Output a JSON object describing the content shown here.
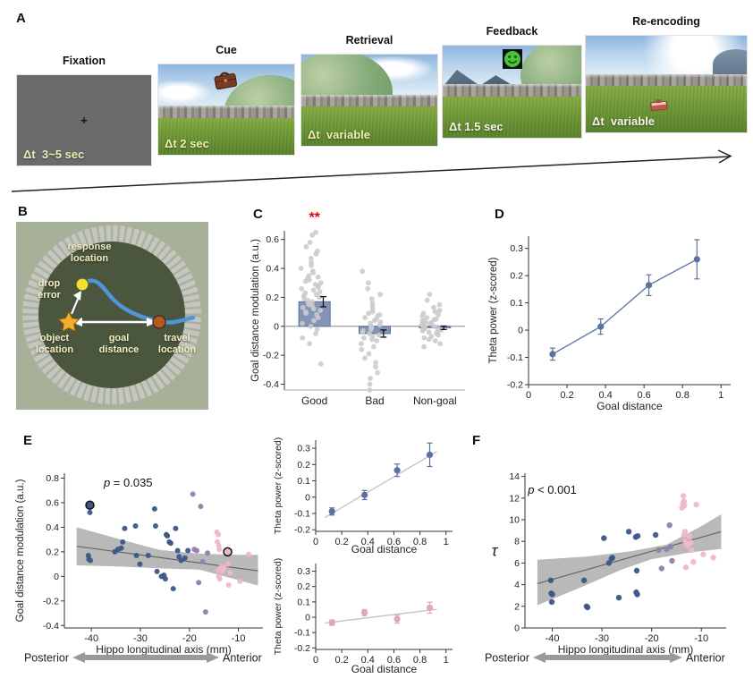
{
  "figure": {
    "panel_labels": {
      "A": "A",
      "B": "B",
      "C": "C",
      "D": "D",
      "E": "E",
      "F": "F"
    }
  },
  "panel_a": {
    "fixation_cross": "+",
    "stages": [
      {
        "title": "Fixation",
        "duration": "Δt  3~5 sec"
      },
      {
        "title": "Cue",
        "duration": "Δt 2 sec"
      },
      {
        "title": "Retrieval",
        "duration": "Δt  variable"
      },
      {
        "title": "Feedback",
        "duration": "Δt 1.5 sec"
      },
      {
        "title": "Re-encoding",
        "duration": "Δt  variable"
      }
    ]
  },
  "panel_b": {
    "labels": {
      "response": "response\nlocation",
      "drop_error": "drop\nerror",
      "object": "object\nlocation",
      "goal_distance": "goal\ndistance",
      "travel": "travel\nlocation"
    }
  },
  "colors": {
    "bar_fill": "#8394b8",
    "bar_stroke": "#5e6f9d",
    "swarm_dot": "#cbcbcb",
    "series_blue": "#5b72a0",
    "scatter_navy": "#3c5688",
    "scatter_purple": "#8f7fae",
    "scatter_pink": "#efb7c9",
    "pink_series": "#e2a5bc",
    "confidence_band": "#b9b9b9",
    "regression_line": "#666666",
    "significance_red": "#e8000d",
    "path_blue": "#4e95d9"
  },
  "chart_data": [
    {
      "id": "C",
      "type": "bar",
      "ylabel": "Goal distance modulation (a.u.)",
      "ylabel_x": 11,
      "categories": [
        "Good",
        "Bad",
        "Non-goal"
      ],
      "values": [
        0.17,
        -0.05,
        -0.01
      ],
      "errors": [
        0.035,
        0.025,
        0.012
      ],
      "ylim": [
        -0.44,
        0.66
      ],
      "yticks": [
        -0.4,
        -0.2,
        0,
        0.2,
        0.4,
        0.6
      ],
      "significance": {
        "category": "Good",
        "text": "**",
        "color": "#e8000d"
      },
      "bar_fill": "#8394b8",
      "bar_stroke": "#5e6f9d",
      "dot_color": "#cbcbcb",
      "swarm": {
        "Good": [
          0.65,
          0.63,
          0.58,
          0.55,
          0.52,
          0.5,
          0.47,
          0.44,
          0.42,
          0.4,
          0.38,
          0.37,
          0.35,
          0.34,
          0.33,
          0.32,
          0.31,
          0.3,
          0.29,
          0.28,
          0.27,
          0.26,
          0.25,
          0.24,
          0.23,
          0.22,
          0.21,
          0.2,
          0.19,
          0.18,
          0.17,
          0.16,
          0.15,
          0.14,
          0.13,
          0.12,
          0.11,
          0.1,
          0.09,
          0.08,
          0.06,
          0.04,
          0.02,
          0,
          -0.02,
          -0.05,
          -0.08,
          -0.12,
          -0.26
        ],
        "Bad": [
          0.38,
          0.3,
          0.26,
          0.22,
          0.19,
          0.16,
          0.14,
          0.12,
          0.1,
          0.09,
          0.08,
          0.07,
          0.06,
          0.05,
          0.04,
          0.03,
          0.02,
          0.01,
          0,
          -0.01,
          -0.02,
          -0.03,
          -0.04,
          -0.05,
          -0.06,
          -0.07,
          -0.08,
          -0.09,
          -0.1,
          -0.12,
          -0.14,
          -0.16,
          -0.19,
          -0.22,
          -0.25,
          -0.28,
          -0.32,
          -0.36,
          -0.4,
          -0.44
        ],
        "Non-goal": [
          0.22,
          0.18,
          0.15,
          0.13,
          0.11,
          0.1,
          0.09,
          0.08,
          0.07,
          0.06,
          0.05,
          0.045,
          0.04,
          0.035,
          0.03,
          0.025,
          0.02,
          0.015,
          0.01,
          0.005,
          0,
          -0.005,
          -0.01,
          -0.015,
          -0.02,
          -0.025,
          -0.03,
          -0.035,
          -0.04,
          -0.05,
          -0.06,
          -0.07,
          -0.08,
          -0.09,
          -0.1,
          -0.12,
          -0.14
        ]
      },
      "m": {
        "l": 40,
        "t": 30,
        "r": 8,
        "b": 38
      }
    },
    {
      "id": "D",
      "type": "series",
      "xlabel": "Goal distance",
      "ylabel": "Theta power (z-scored)",
      "ylabel_x": 10,
      "x": [
        0.125,
        0.375,
        0.625,
        0.875
      ],
      "y": [
        -0.088,
        0.013,
        0.165,
        0.26
      ],
      "err": [
        0.022,
        0.028,
        0.038,
        0.072
      ],
      "connect": true,
      "color": "#5b72a0",
      "xlim": [
        0,
        1.05
      ],
      "ylim": [
        -0.2,
        0.345
      ],
      "xticks": [
        0,
        0.2,
        0.4,
        0.6,
        0.8,
        1
      ],
      "yticks": [
        -0.2,
        -0.1,
        0,
        0.1,
        0.2,
        0.3
      ],
      "m": {
        "l": 46,
        "t": 36,
        "r": 25,
        "b": 40
      }
    },
    {
      "id": "E",
      "type": "scatter",
      "xlabel": "Hippo longitudinal axis (mm)",
      "ylabel": "Goal distance modulation (a.u.)",
      "ylabel_x": 14,
      "xlim": [
        -45.5,
        -5
      ],
      "ylim": [
        -0.42,
        0.84
      ],
      "xticks": [
        -40,
        -30,
        -20,
        -10
      ],
      "yticks": [
        -0.4,
        -0.2,
        0,
        0.2,
        0.4,
        0.6,
        0.8
      ],
      "p_label": {
        "sym": "p",
        "rest": " = 0.035",
        "x": -32.5,
        "y": 0.73
      },
      "band_color": "#b9b9b9",
      "band": [
        [
          -43,
          0.4
        ],
        [
          -34,
          0.3
        ],
        [
          -26,
          0.215
        ],
        [
          -18,
          0.185
        ],
        [
          -10,
          0.175
        ],
        [
          -6,
          0.175
        ],
        [
          -6,
          -0.075
        ],
        [
          -10,
          -0.03
        ],
        [
          -18,
          0.055
        ],
        [
          -26,
          0.065
        ],
        [
          -34,
          0.08
        ],
        [
          -43,
          0.09
        ]
      ],
      "regression": [
        [
          -43,
          0.245
        ],
        [
          -6,
          0.045
        ]
      ],
      "pt_r": 3,
      "groups": [
        {
          "name": "posterior",
          "color": "#3c5688",
          "points": [
            [
              -40.3,
              0.52
            ],
            [
              -40.6,
              0.17
            ],
            [
              -40.5,
              0.14
            ],
            [
              -40.2,
              0.13
            ],
            [
              -35.2,
              0.2
            ],
            [
              -34.6,
              0.22
            ],
            [
              -33.9,
              0.23
            ],
            [
              -33.6,
              0.28
            ],
            [
              -33.2,
              0.39
            ],
            [
              -31,
              0.41
            ],
            [
              -30.8,
              0.17
            ],
            [
              -30.1,
              0.1
            ],
            [
              -28.4,
              0.17
            ],
            [
              -27.1,
              0.55
            ],
            [
              -26.9,
              0.41
            ],
            [
              -26.6,
              0.04
            ],
            [
              -25.7,
              0
            ],
            [
              -25.2,
              0.01
            ],
            [
              -24.9,
              -0.02
            ],
            [
              -24.7,
              0.34
            ],
            [
              -24.5,
              0.33
            ],
            [
              -24.1,
              0.28
            ],
            [
              -23.8,
              0.27
            ],
            [
              -23.3,
              -0.1
            ],
            [
              -22.8,
              0.39
            ],
            [
              -22.4,
              0.21
            ],
            [
              -22.1,
              0.16
            ],
            [
              -21.7,
              0.13
            ],
            [
              -20.9,
              0.15
            ],
            [
              -20.3,
              0.21
            ]
          ]
        },
        {
          "name": "middle",
          "color": "#8f7fae",
          "points": [
            [
              -19.3,
              0.67
            ],
            [
              -19,
              0.22
            ],
            [
              -18.5,
              0.21
            ],
            [
              -18.1,
              -0.05
            ],
            [
              -17.7,
              0.57
            ],
            [
              -17.3,
              0.12
            ],
            [
              -16.7,
              -0.29
            ],
            [
              -16.3,
              0.19
            ]
          ]
        },
        {
          "name": "anterior",
          "color": "#efb7c9",
          "points": [
            [
              -14.4,
              0.36
            ],
            [
              -14.1,
              0.34
            ],
            [
              -14.3,
              0.28
            ],
            [
              -14,
              0.25
            ],
            [
              -13.9,
              0.22
            ],
            [
              -14.1,
              0.05
            ],
            [
              -14,
              0
            ],
            [
              -13.8,
              -0.02
            ],
            [
              -13.5,
              0.08
            ],
            [
              -13.3,
              0.04
            ],
            [
              -12.9,
              0.07
            ],
            [
              -12.1,
              0.1
            ],
            [
              -12,
              -0.07
            ],
            [
              -11.7,
              0.03
            ],
            [
              -9.7,
              -0.04
            ],
            [
              -7.9,
              0.18
            ]
          ]
        }
      ],
      "highlight": [
        {
          "x": -40.3,
          "y": 0.58,
          "color": "#3c5688"
        },
        {
          "x": -12.2,
          "y": 0.2,
          "color": "#efb7c9"
        }
      ],
      "axis_arrow": {
        "left": "Posterior",
        "right": "Anterior"
      },
      "m": {
        "l": 60,
        "t": 51,
        "r": 18,
        "b": 64
      }
    },
    {
      "id": "E2a",
      "type": "series",
      "xlabel": "Goal distance",
      "ylabel": "Theta power (z-scored)",
      "ylabel_x": 11,
      "ylabel_fs": 10.5,
      "xlabel_dy": 24,
      "x": [
        0.125,
        0.375,
        0.625,
        0.875
      ],
      "y": [
        -0.088,
        0.013,
        0.165,
        0.26
      ],
      "err": [
        0.022,
        0.028,
        0.038,
        0.072
      ],
      "fit": [
        [
          0.07,
          -0.125
        ],
        [
          0.93,
          0.28
        ]
      ],
      "connect": false,
      "color": "#5b72a0",
      "xlim": [
        0,
        1.05
      ],
      "ylim": [
        -0.21,
        0.35
      ],
      "xticks": [
        0,
        0.2,
        0.4,
        0.6,
        0.8,
        1
      ],
      "yticks": [
        -0.2,
        -0.1,
        0,
        0.1,
        0.2,
        0.3
      ],
      "m": {
        "l": 50,
        "t": 22,
        "r": 14,
        "b": 28
      }
    },
    {
      "id": "E2b",
      "type": "series",
      "xlabel": "Goal distance",
      "ylabel": "Theta power (z-scored)",
      "ylabel_x": 11,
      "ylabel_fs": 10.5,
      "xlabel_dy": 26,
      "x": [
        0.125,
        0.375,
        0.625,
        0.875
      ],
      "y": [
        -0.035,
        0.03,
        -0.012,
        0.062
      ],
      "err": [
        0.018,
        0.02,
        0.026,
        0.036
      ],
      "fit": [
        [
          0.07,
          -0.038
        ],
        [
          0.93,
          0.052
        ]
      ],
      "connect": false,
      "color": "#e2a5bc",
      "xlim": [
        0,
        1.05
      ],
      "ylim": [
        -0.21,
        0.35
      ],
      "xticks": [
        0,
        0.2,
        0.4,
        0.6,
        0.8,
        1
      ],
      "yticks": [
        -0.2,
        -0.1,
        0,
        0.1,
        0.2,
        0.3
      ],
      "m": {
        "l": 50,
        "t": 30,
        "r": 14,
        "b": 38
      }
    },
    {
      "id": "F",
      "type": "scatter",
      "xlabel": "Hippo longitudinal axis (mm)",
      "ylabel": "τ",
      "ylabel_rot": false,
      "xlim": [
        -45.5,
        -5
      ],
      "ylim": [
        0,
        14.3
      ],
      "xticks": [
        -40,
        -30,
        -20,
        -10
      ],
      "yticks": [
        0,
        2,
        4,
        6,
        8,
        10,
        12,
        14
      ],
      "p_label": {
        "sym": "p",
        "rest": " < 0.001",
        "x": -40,
        "y": 12.4
      },
      "band_color": "#b9b9b9",
      "band": [
        [
          -43,
          6.3
        ],
        [
          -33,
          6.6
        ],
        [
          -24,
          7.1
        ],
        [
          -17,
          7.7
        ],
        [
          -10,
          9.4
        ],
        [
          -6,
          10.5
        ],
        [
          -6,
          7.3
        ],
        [
          -12,
          7
        ],
        [
          -20,
          6.35
        ],
        [
          -26,
          5.4
        ],
        [
          -34,
          3.8
        ],
        [
          -43,
          2.1
        ]
      ],
      "regression": [
        [
          -43,
          4.1
        ],
        [
          -6,
          8.9
        ]
      ],
      "pt_r": 3.2,
      "groups": [
        {
          "name": "posterior",
          "color": "#3c5688",
          "points": [
            [
              -40.3,
              4.4
            ],
            [
              -40.2,
              3.2
            ],
            [
              -40,
              3.1
            ],
            [
              -40.1,
              2.4
            ],
            [
              -33.6,
              4.4
            ],
            [
              -33.1,
              2
            ],
            [
              -32.9,
              1.9
            ],
            [
              -29.6,
              8.3
            ],
            [
              -28.6,
              6
            ],
            [
              -28.1,
              6.4
            ],
            [
              -27.9,
              6.5
            ],
            [
              -26.6,
              2.8
            ],
            [
              -24.6,
              8.9
            ],
            [
              -23.2,
              8.4
            ],
            [
              -22.8,
              8.5
            ],
            [
              -23,
              5.3
            ],
            [
              -23.1,
              3.3
            ],
            [
              -22.9,
              3.1
            ],
            [
              -19.2,
              8.6
            ]
          ]
        },
        {
          "name": "middle",
          "color": "#8f7fae",
          "points": [
            [
              -18.6,
              7.2
            ],
            [
              -18,
              5.5
            ],
            [
              -17,
              7.3
            ],
            [
              -16.4,
              9.5
            ],
            [
              -16.2,
              7.5
            ],
            [
              -15.9,
              6.2
            ]
          ]
        },
        {
          "name": "anterior",
          "color": "#efb7c9",
          "points": [
            [
              -13.6,
              12.2
            ],
            [
              -13.5,
              11.7
            ],
            [
              -13.7,
              11.5
            ],
            [
              -13.4,
              11.3
            ],
            [
              -13.9,
              11.1
            ],
            [
              -13.3,
              8.9
            ],
            [
              -13.5,
              8.6
            ],
            [
              -13.2,
              8
            ],
            [
              -13,
              7.8
            ],
            [
              -12.8,
              7.6
            ],
            [
              -13.1,
              5.6
            ],
            [
              -12.4,
              8.5
            ],
            [
              -12.1,
              7.9
            ],
            [
              -12,
              7.2
            ],
            [
              -11.6,
              6.1
            ],
            [
              -11,
              11.4
            ],
            [
              -9.6,
              6.8
            ],
            [
              -7.6,
              6.5
            ]
          ]
        }
      ],
      "axis_arrow": {
        "left": "Posterior",
        "right": "Anterior"
      },
      "m": {
        "l": 62,
        "t": 51,
        "r": 30,
        "b": 64
      }
    }
  ]
}
